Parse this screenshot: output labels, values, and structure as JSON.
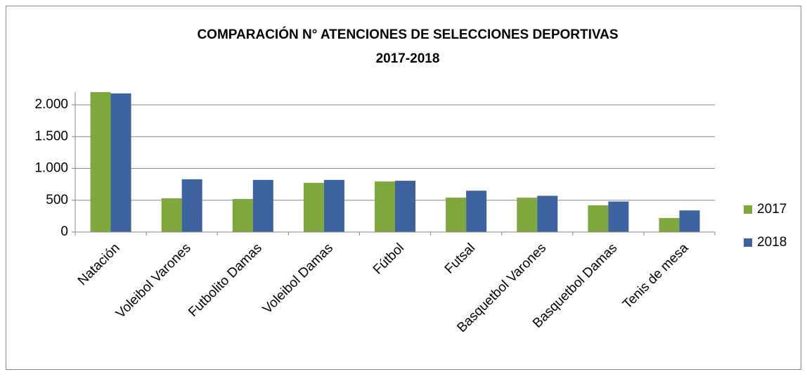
{
  "chart_data": {
    "type": "bar",
    "title": "COMPARACIÓN N° ATENCIONES DE SELECCIONES DEPORTIVAS",
    "subtitle": "2017-2018",
    "categories": [
      "Natación",
      "Voleibol Varones",
      "Futbolito Damas",
      "Voleibol Damas",
      "Fútbol",
      "Futsal",
      "Basquetbol Varones",
      "Basquetbol Damas",
      "Tenis de mesa"
    ],
    "series": [
      {
        "name": "2017",
        "color": "#7fa83c",
        "values": [
          2200,
          530,
          520,
          773,
          795,
          541,
          540,
          420,
          220
        ]
      },
      {
        "name": "2018",
        "color": "#3c62a0",
        "values": [
          2180,
          829,
          820,
          820,
          806,
          650,
          570,
          480,
          340
        ]
      }
    ],
    "ylim": [
      0,
      2200
    ],
    "yticks": [
      0,
      500,
      {
        "value": 1000,
        "label": "1.000"
      },
      {
        "value": 1500,
        "label": "1.500"
      },
      {
        "value": 2000,
        "label": "2.000"
      }
    ],
    "grid": true,
    "legend": "right"
  }
}
